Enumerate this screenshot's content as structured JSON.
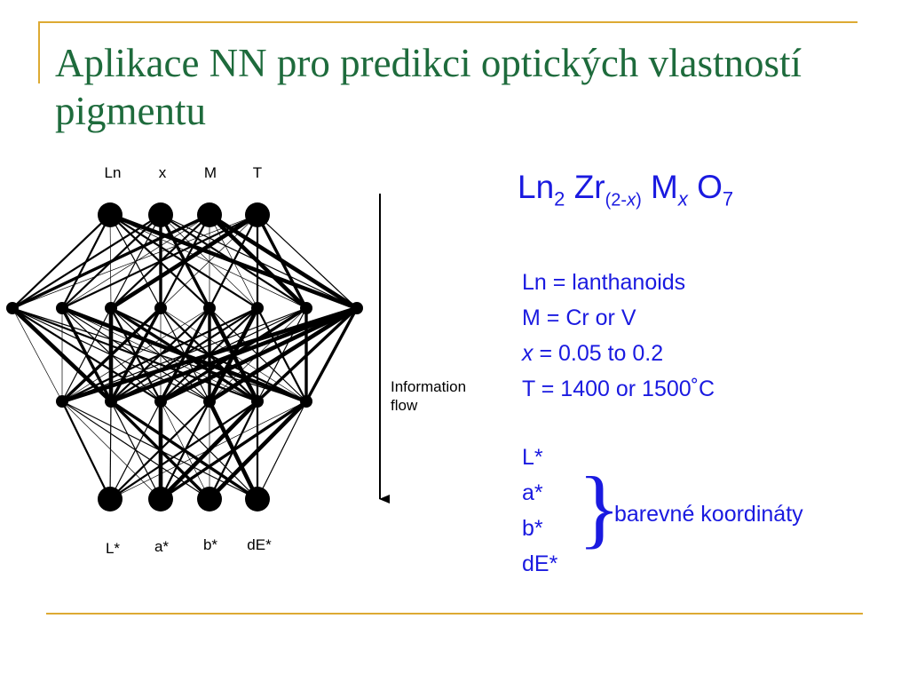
{
  "title": "Aplikace NN pro predikci optických vlastností pigmentu",
  "formula": {
    "ln": "Ln",
    "ln_sub": "2",
    "zr": "Zr",
    "zr_sub_open": "(2-",
    "zr_sub_x": "x",
    "zr_sub_close": ")",
    "m": "M",
    "m_sub": "x",
    "o": "O",
    "o_sub": "7"
  },
  "definitions": {
    "ln": "Ln = lanthanoids",
    "m": "M = Cr or V",
    "x_var": "x",
    "x_rest": " = 0.05 to 0.2",
    "t": "T = 1400 or 1500˚C"
  },
  "outputs": [
    "L*",
    "a*",
    "b*",
    "dE*"
  ],
  "brace": "}",
  "brace_label": "barevné koordináty",
  "diagram": {
    "input_labels": [
      "Ln",
      "x",
      "M",
      "T"
    ],
    "output_labels": [
      "L*",
      "a*",
      "b*",
      "dE*"
    ],
    "flow_label_line1": "Information",
    "flow_label_line2": "flow"
  }
}
